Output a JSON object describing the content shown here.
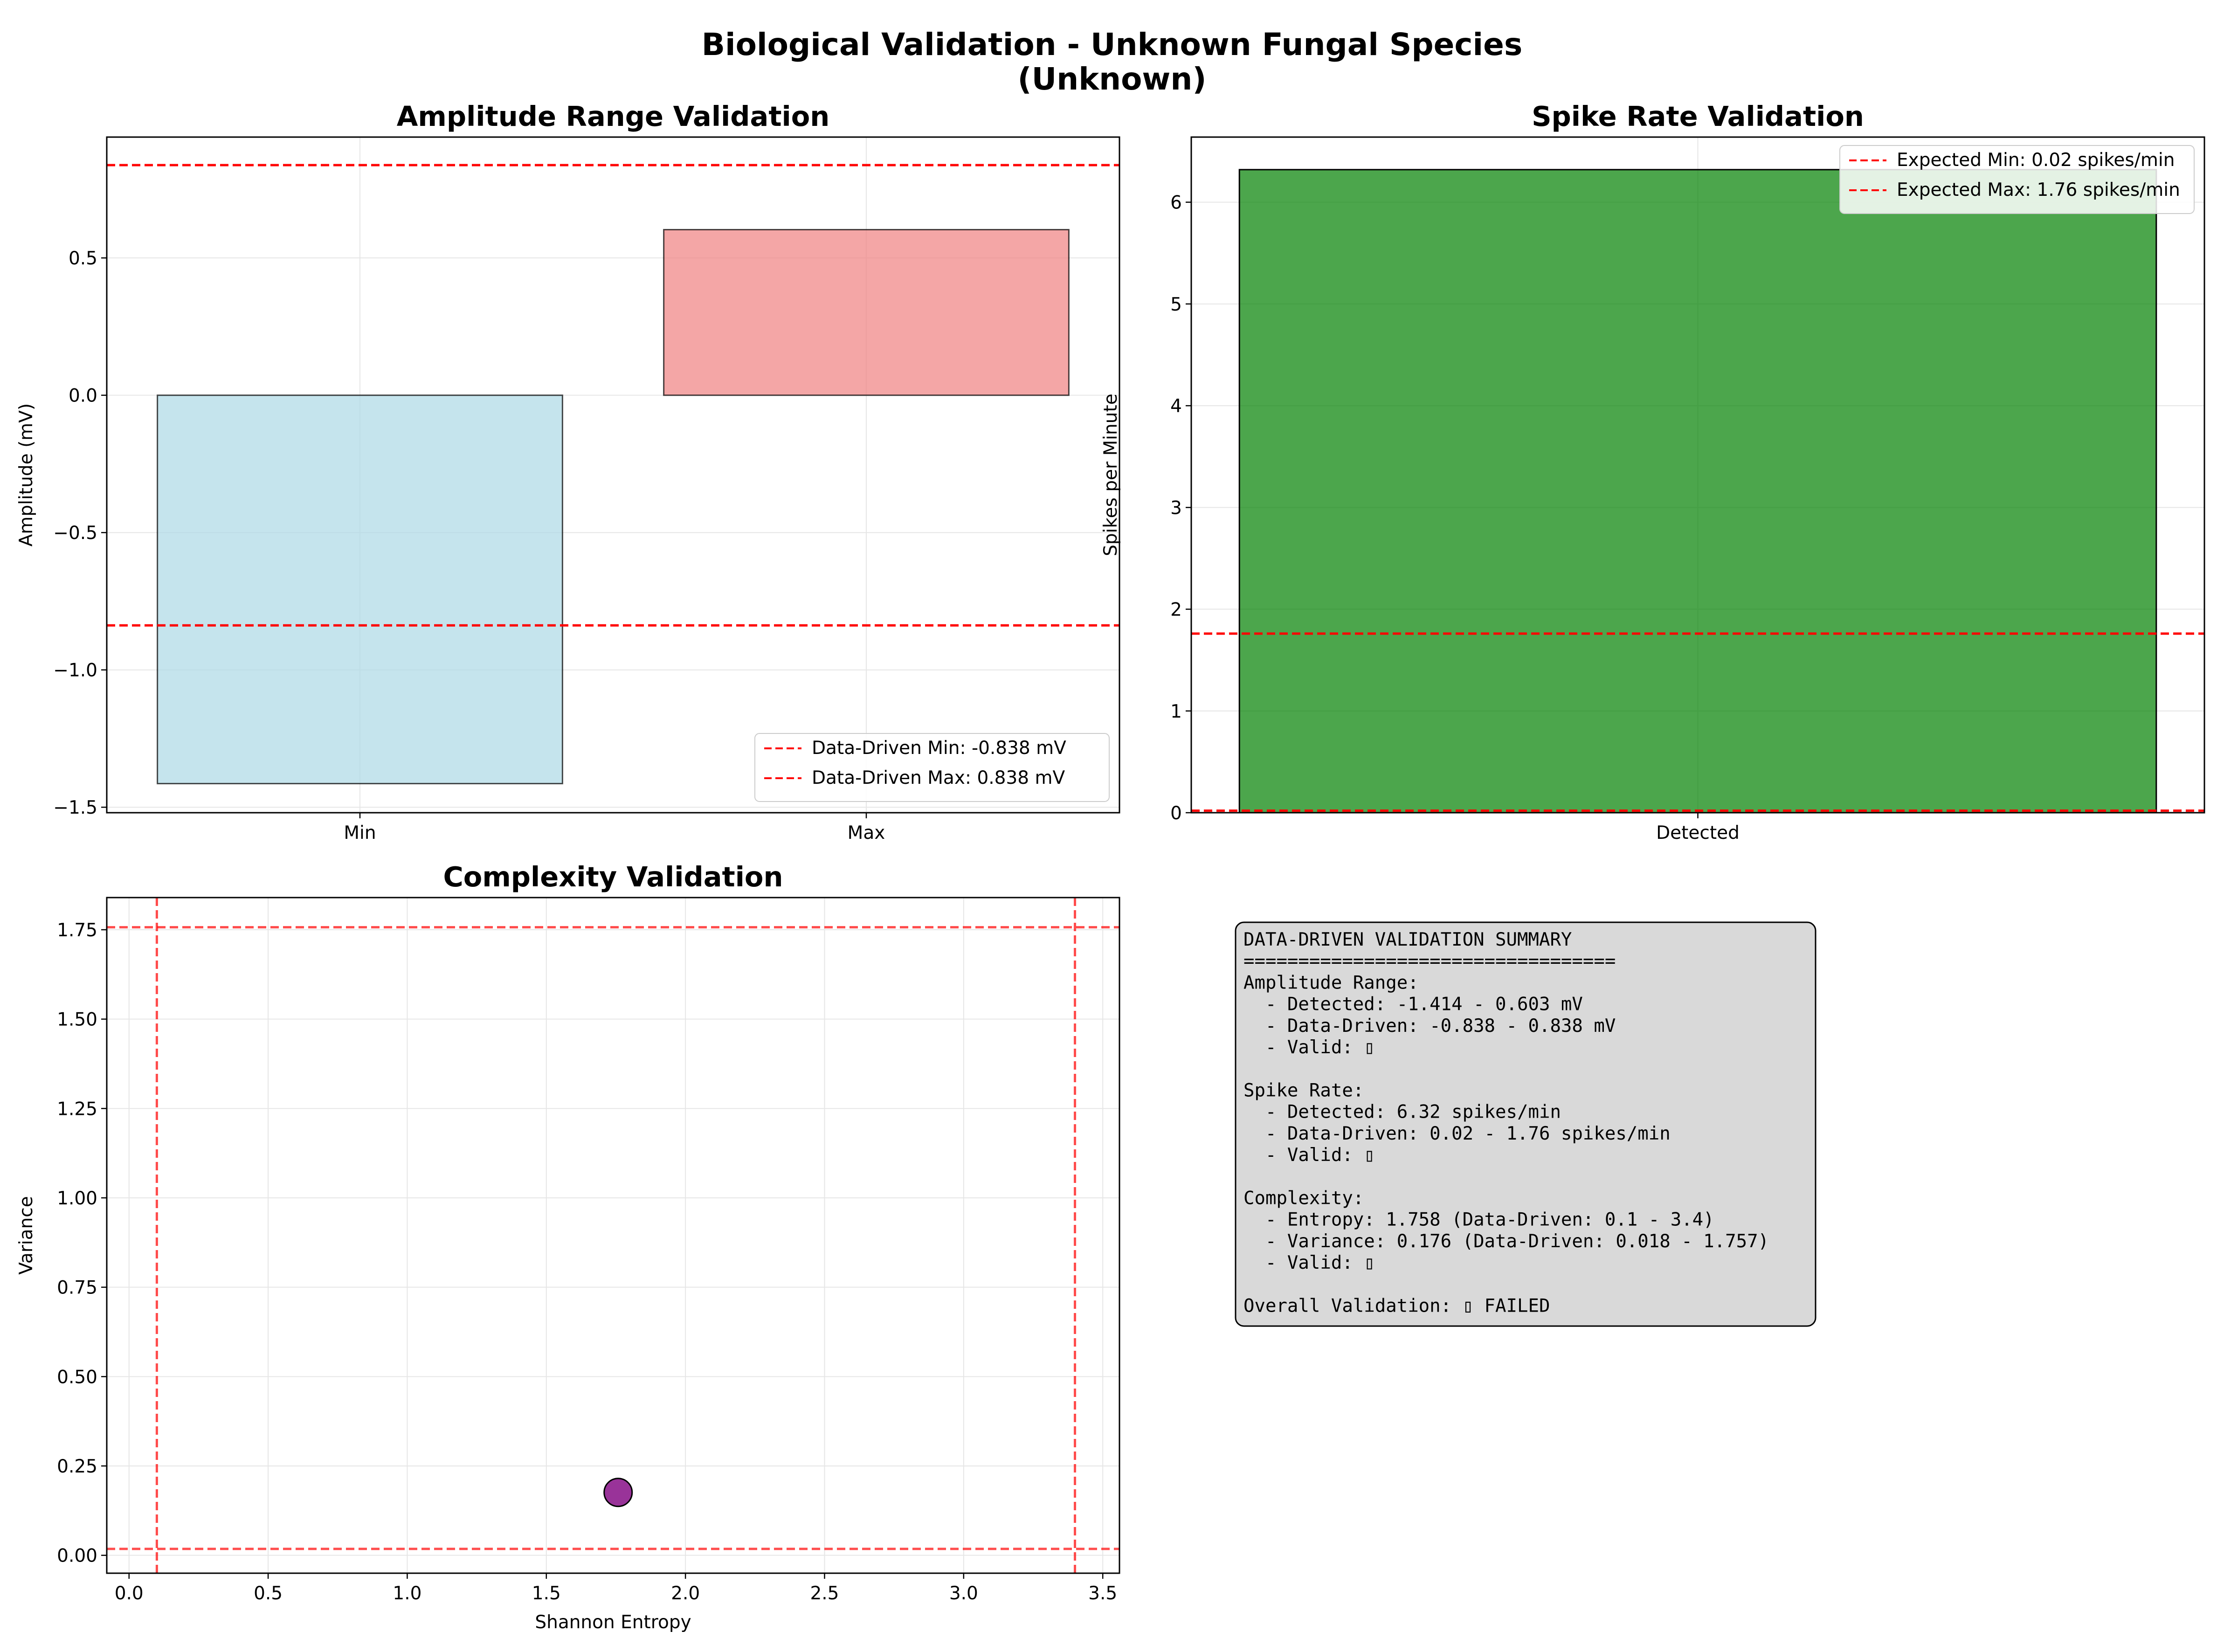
{
  "figure": {
    "title_line1": "Biological Validation - Unknown Fungal Species",
    "title_line2": "(Unknown)"
  },
  "colors": {
    "threshold": "#ff0000",
    "min_bar": "#add8e6",
    "max_bar": "#f08080",
    "spike_bar": "#008000",
    "point": "#800080",
    "summary_bg": "#d9d9d9"
  },
  "chart_data": [
    {
      "type": "bar",
      "title": "Amplitude Range Validation",
      "xlabel": "",
      "ylabel": "Amplitude (mV)",
      "categories": [
        "Min",
        "Max"
      ],
      "values": [
        -1.414,
        0.603
      ],
      "ylim": [
        -1.52,
        0.94
      ],
      "yticks": [
        -1.5,
        -1.0,
        -0.5,
        0.0,
        0.5
      ],
      "ytick_labels": [
        "−1.5",
        "−1.0",
        "−0.5",
        "0.0",
        "0.5"
      ],
      "thresholds": [
        {
          "value": -0.838,
          "label": "Data-Driven Min: -0.838 mV"
        },
        {
          "value": 0.838,
          "label": "Data-Driven Max: 0.838 mV"
        }
      ],
      "grid": true,
      "legend": "lower-right"
    },
    {
      "type": "bar",
      "title": "Spike Rate Validation",
      "xlabel": "",
      "ylabel": "Spikes per Minute",
      "categories": [
        "Detected"
      ],
      "values": [
        6.32
      ],
      "ylim": [
        0,
        6.64
      ],
      "yticks": [
        0,
        1,
        2,
        3,
        4,
        5,
        6
      ],
      "ytick_labels": [
        "0",
        "1",
        "2",
        "3",
        "4",
        "5",
        "6"
      ],
      "thresholds": [
        {
          "value": 0.02,
          "label": "Expected Min: 0.02 spikes/min"
        },
        {
          "value": 1.76,
          "label": "Expected Max: 1.76 spikes/min"
        }
      ],
      "grid": true,
      "legend": "upper-right"
    },
    {
      "type": "scatter",
      "title": "Complexity Validation",
      "xlabel": "Shannon Entropy",
      "ylabel": "Variance",
      "points": [
        {
          "x": 1.758,
          "y": 0.176
        }
      ],
      "xlim": [
        -0.08,
        3.56
      ],
      "ylim": [
        -0.05,
        1.84
      ],
      "xticks": [
        0.0,
        0.5,
        1.0,
        1.5,
        2.0,
        2.5,
        3.0,
        3.5
      ],
      "xtick_labels": [
        "0.0",
        "0.5",
        "1.0",
        "1.5",
        "2.0",
        "2.5",
        "3.0",
        "3.5"
      ],
      "yticks": [
        0.0,
        0.25,
        0.5,
        0.75,
        1.0,
        1.25,
        1.5,
        1.75
      ],
      "ytick_labels": [
        "0.00",
        "0.25",
        "0.50",
        "0.75",
        "1.00",
        "1.25",
        "1.50",
        "1.75"
      ],
      "x_thresholds": [
        0.1,
        3.4
      ],
      "y_thresholds": [
        0.018,
        1.757
      ],
      "grid": true
    }
  ],
  "summary": {
    "lines": [
      "DATA-DRIVEN VALIDATION SUMMARY",
      "==================================",
      "Amplitude Range:",
      "  - Detected: -1.414 - 0.603 mV",
      "  - Data-Driven: -0.838 - 0.838 mV",
      "  - Valid: ▯",
      "",
      "Spike Rate:",
      "  - Detected: 6.32 spikes/min",
      "  - Data-Driven: 0.02 - 1.76 spikes/min",
      "  - Valid: ▯",
      "",
      "Complexity:",
      "  - Entropy: 1.758 (Data-Driven: 0.1 - 3.4)",
      "  - Variance: 0.176 (Data-Driven: 0.018 - 1.757)",
      "  - Valid: ▯",
      "",
      "Overall Validation: ▯ FAILED"
    ]
  }
}
